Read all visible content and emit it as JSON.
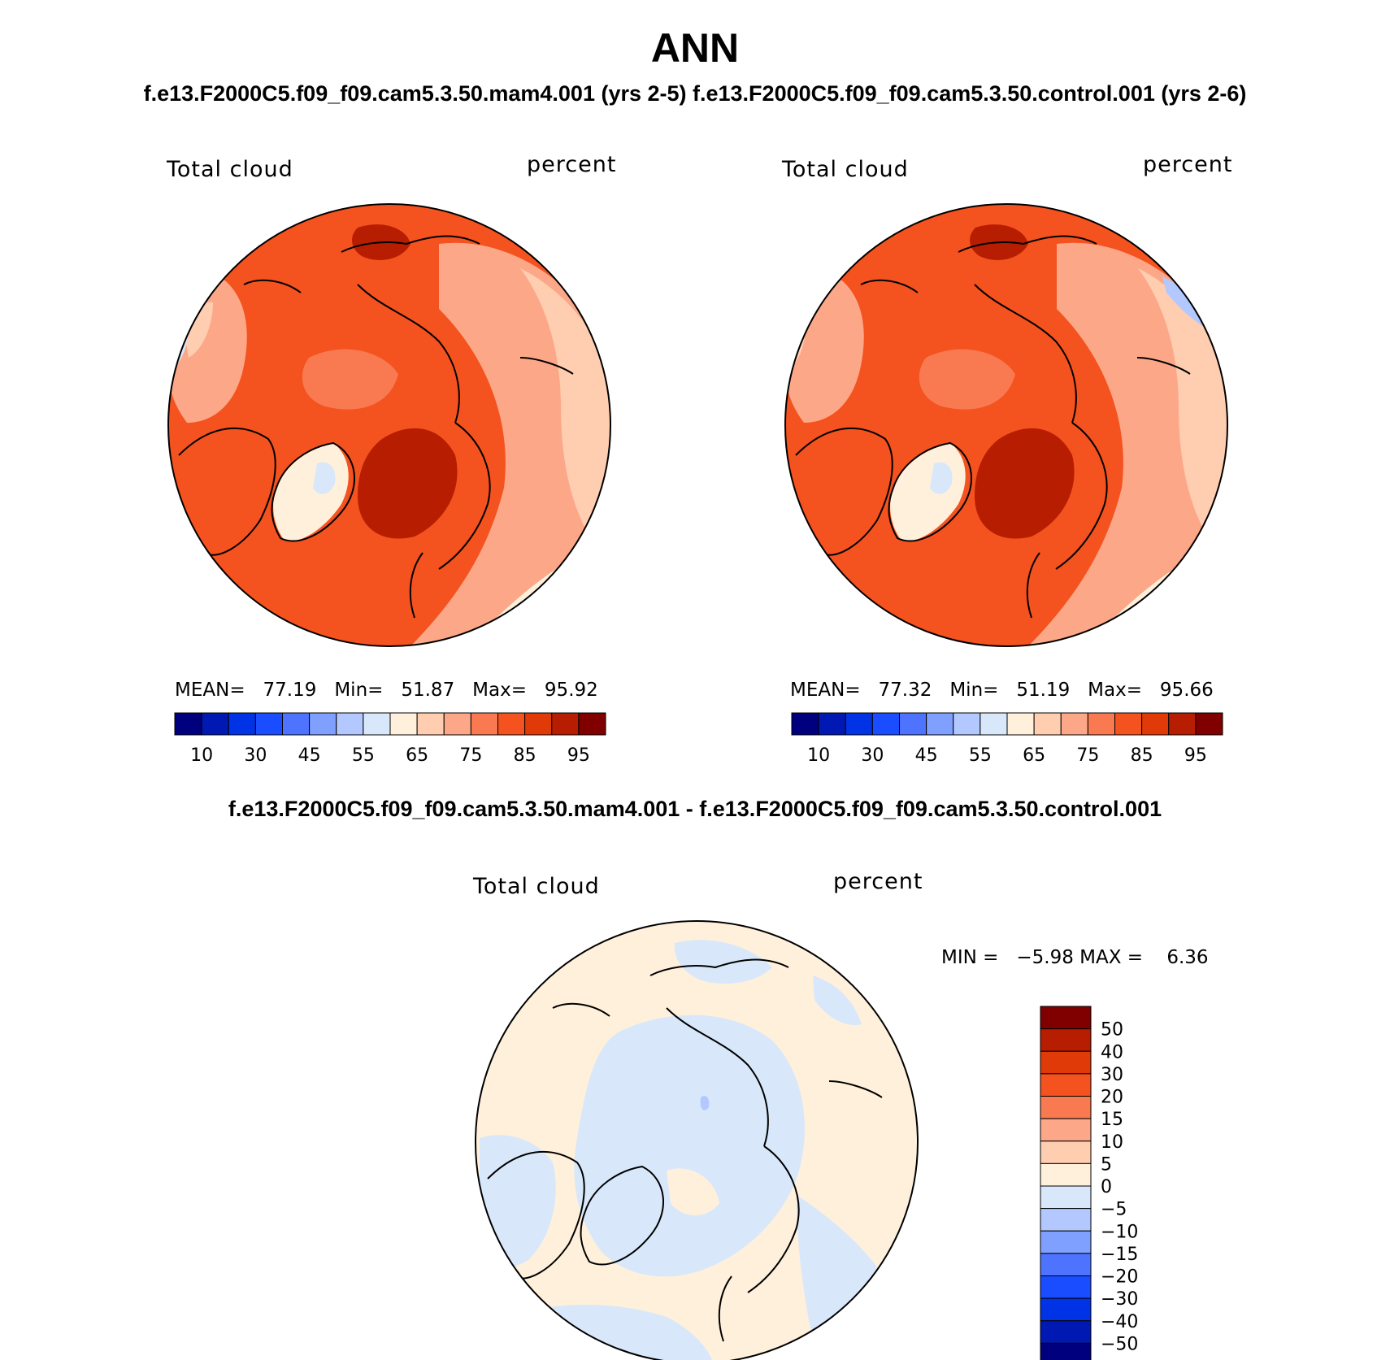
{
  "title": "ANN",
  "subtitle": "f.e13.F2000C5.f09_f09.cam5.3.50.mam4.001 (yrs 2-5) f.e13.F2000C5.f09_f09.cam5.3.50.control.001 (yrs 2-6)",
  "diff_title": "f.e13.F2000C5.f09_f09.cam5.3.50.mam4.001 - f.e13.F2000C5.f09_f09.cam5.3.50.control.001",
  "panels": [
    {
      "variable": "Total cloud",
      "units": "percent",
      "stats": {
        "mean_label": "MEAN=",
        "mean": "77.19",
        "min_label": "Min=",
        "min": "51.87",
        "max_label": "Max=",
        "max": "95.92"
      }
    },
    {
      "variable": "Total cloud",
      "units": "percent",
      "stats": {
        "mean_label": "MEAN=",
        "mean": "77.32",
        "min_label": "Min=",
        "min": "51.19",
        "max_label": "Max=",
        "max": "95.66"
      }
    }
  ],
  "diff_panel": {
    "variable": "Total cloud",
    "units": "percent",
    "stats": {
      "min_label": "MIN =",
      "min": "−5.98",
      "max_label": "MAX =",
      "max": "6.36"
    }
  },
  "colorbar_main": {
    "colors": [
      "#00007f",
      "#0019b2",
      "#0033e6",
      "#1a4dff",
      "#4d73ff",
      "#80a0ff",
      "#b3c8ff",
      "#d8e8fa",
      "#fff0dc",
      "#ffcdb0",
      "#fca888",
      "#f97a50",
      "#f4521f",
      "#df3a08",
      "#b71d00",
      "#800000"
    ],
    "tick_labels": [
      "10",
      "30",
      "45",
      "55",
      "65",
      "75",
      "85",
      "95"
    ]
  },
  "colorbar_diff": {
    "colors": [
      "#800000",
      "#b71d00",
      "#df3a08",
      "#f4521f",
      "#f97a50",
      "#fca888",
      "#ffcdb0",
      "#fff0dc",
      "#d8e8fa",
      "#b3c8ff",
      "#80a0ff",
      "#4d73ff",
      "#1a4dff",
      "#0033e6",
      "#0019b2",
      "#00007f"
    ],
    "tick_labels": [
      "50",
      "40",
      "30",
      "20",
      "15",
      "10",
      "5",
      "0",
      "−5",
      "−10",
      "−15",
      "−20",
      "−30",
      "−40",
      "−50"
    ]
  }
}
